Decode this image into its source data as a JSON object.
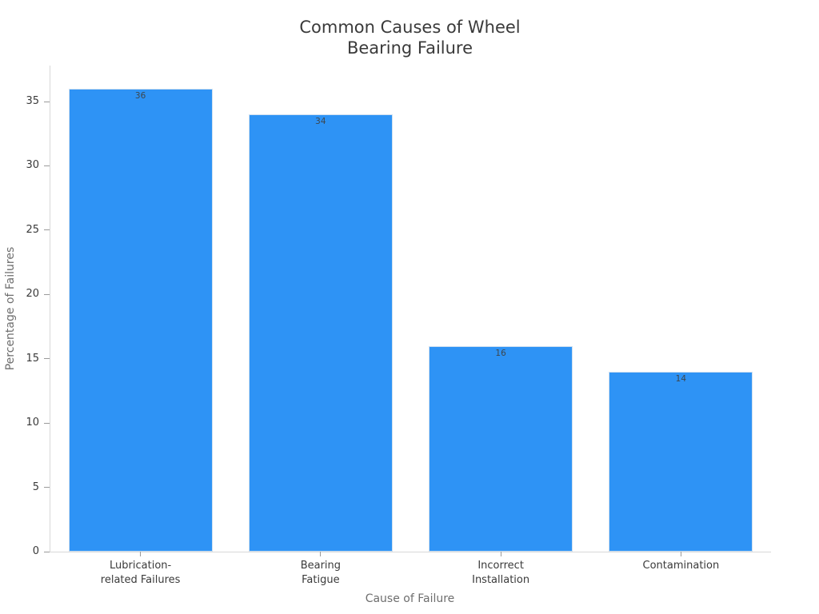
{
  "chart_data": {
    "type": "bar",
    "title": "Common Causes of Wheel\nBearing Failure",
    "xlabel": "Cause of Failure",
    "ylabel": "Percentage of Failures",
    "categories": [
      "Lubrication-\nrelated Failures",
      "Bearing\nFatigue",
      "Incorrect\nInstallation",
      "Contamination"
    ],
    "values": [
      36,
      34,
      16,
      14
    ],
    "bar_labels": [
      "36",
      "34",
      "16",
      "14"
    ],
    "yticks": [
      0,
      5,
      10,
      15,
      20,
      25,
      30,
      35
    ],
    "ylim": [
      0,
      37.8
    ],
    "grid": false,
    "legend": "none",
    "bar_width_fraction": 0.8,
    "colors": {
      "bar": "#2e93f5",
      "bar_edge": "#cfe0f0",
      "title": "#3a3a3a",
      "tick_label": "#3a3a3a",
      "axis_label": "#6e6e6e",
      "value_label": "#3d464d",
      "spine": "#d8d8d8",
      "tick_mark": "#9a9a9a"
    }
  }
}
